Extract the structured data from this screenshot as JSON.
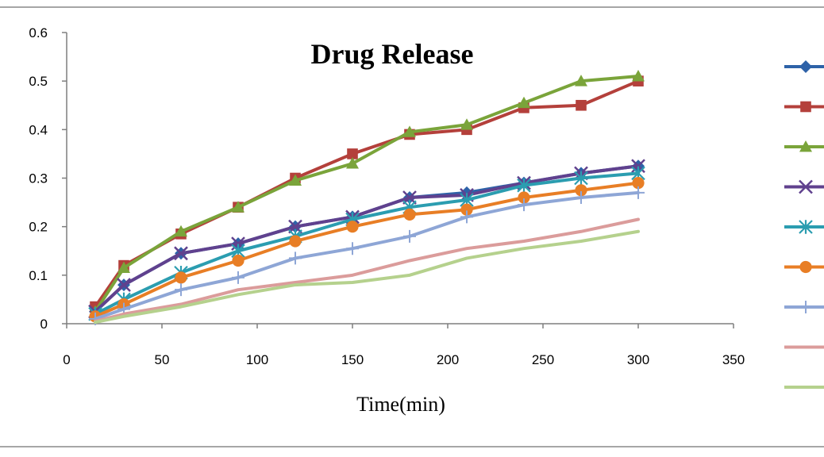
{
  "chart_data": {
    "type": "line",
    "title": "Drug Release",
    "xlabel": "Time(min)",
    "ylabel": "",
    "xlim": [
      0,
      350
    ],
    "ylim": [
      0,
      0.6
    ],
    "xticks": [
      0,
      50,
      100,
      150,
      200,
      250,
      300,
      350
    ],
    "yticks": [
      0,
      0.1,
      0.2,
      0.3,
      0.4,
      0.5,
      0.6
    ],
    "ytick_labels": [
      "0",
      "0.1",
      "0.2",
      "0.3",
      "0.4",
      "0.5",
      "0.6"
    ],
    "grid": false,
    "legend_position": "right",
    "x": [
      15,
      30,
      60,
      90,
      120,
      150,
      180,
      210,
      240,
      270,
      300
    ],
    "series": [
      {
        "color": "#2e62a8",
        "marker": "diamond",
        "values": [
          0.025,
          0.08,
          0.145,
          0.165,
          0.2,
          0.22,
          0.26,
          0.27,
          0.29,
          0.31,
          0.325
        ]
      },
      {
        "color": "#b4403b",
        "marker": "square",
        "values": [
          0.035,
          0.12,
          0.185,
          0.24,
          0.3,
          0.35,
          0.39,
          0.4,
          0.445,
          0.45,
          0.5
        ]
      },
      {
        "color": "#7aa43a",
        "marker": "triangle",
        "values": [
          0.025,
          0.115,
          0.19,
          0.24,
          0.295,
          0.33,
          0.395,
          0.41,
          0.455,
          0.5,
          0.51
        ]
      },
      {
        "color": "#60418e",
        "marker": "x",
        "values": [
          0.025,
          0.08,
          0.145,
          0.165,
          0.2,
          0.22,
          0.26,
          0.265,
          0.29,
          0.31,
          0.325
        ]
      },
      {
        "color": "#2b9db0",
        "marker": "star",
        "values": [
          0.02,
          0.05,
          0.105,
          0.15,
          0.18,
          0.215,
          0.24,
          0.255,
          0.285,
          0.3,
          0.31
        ]
      },
      {
        "color": "#e87e25",
        "marker": "circle",
        "values": [
          0.015,
          0.04,
          0.095,
          0.13,
          0.17,
          0.2,
          0.225,
          0.235,
          0.26,
          0.275,
          0.29
        ]
      },
      {
        "color": "#8ea6d6",
        "marker": "plus",
        "values": [
          0.01,
          0.03,
          0.07,
          0.095,
          0.135,
          0.155,
          0.18,
          0.22,
          0.245,
          0.26,
          0.27
        ]
      },
      {
        "color": "#db9c9b",
        "marker": "none",
        "values": [
          0.005,
          0.02,
          0.04,
          0.07,
          0.085,
          0.1,
          0.13,
          0.155,
          0.17,
          0.19,
          0.215
        ]
      },
      {
        "color": "#b5d18d",
        "marker": "none",
        "values": [
          0.003,
          0.015,
          0.035,
          0.06,
          0.08,
          0.085,
          0.1,
          0.135,
          0.155,
          0.17,
          0.19
        ]
      }
    ]
  }
}
